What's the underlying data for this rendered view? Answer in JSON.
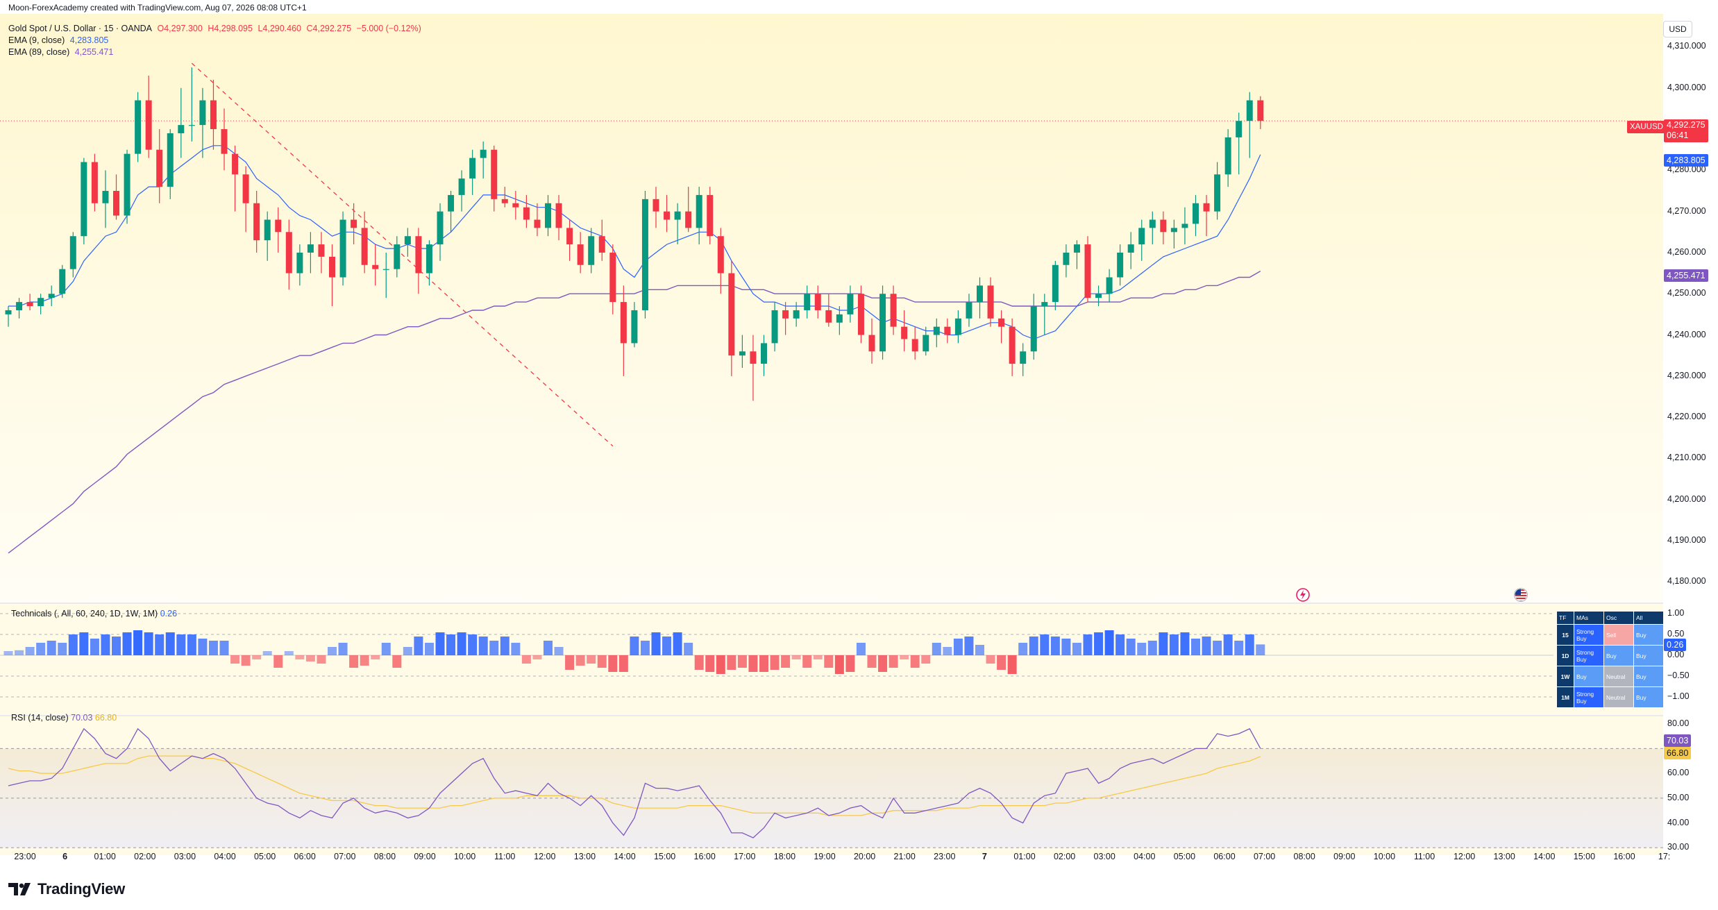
{
  "caption": "Moon-ForexAcademy created with TradingView.com, Aug 07, 2026 08:08 UTC+1",
  "legend": {
    "symbol": "Gold Spot / U.S. Dollar · 15 · OANDA",
    "o": "O4,297.300",
    "h": "H4,298.095",
    "l": "L4,290.460",
    "c": "C4,292.275",
    "chg": "−5.000 (−0.12%)",
    "ema9_label": "EMA (9, close)",
    "ema9_value": "4,283.805",
    "ema89_label": "EMA (89, close)",
    "ema89_value": "4,255.471"
  },
  "currency": "USD",
  "price_axis": [
    "4,310.000",
    "4,300.000",
    "4,290.000",
    "4,280.000",
    "4,270.000",
    "4,260.000",
    "4,250.000",
    "4,240.000",
    "4,230.000",
    "4,220.000",
    "4,210.000",
    "4,200.000",
    "4,190.000",
    "4,180.000"
  ],
  "price_tags": {
    "symbol": "XAUUSD",
    "last": "4,292.275",
    "countdown": "06:41",
    "ema9": "4,283.805",
    "ema89": "4,255.471"
  },
  "technicals": {
    "label": "Technicals (, All, 60, 240, 1D, 1W, 1M)",
    "value": "0.26",
    "axis": [
      "1.00",
      "0.50",
      "0.00",
      "−0.50",
      "−1.00"
    ],
    "table": {
      "headers": [
        "TF",
        "MAs",
        "Osc",
        "All"
      ],
      "rows": [
        {
          "tf": "15",
          "mas": "Strong Buy",
          "osc": "Sell",
          "all": "Buy"
        },
        {
          "tf": "1D",
          "mas": "Strong Buy",
          "osc": "Buy",
          "all": "Buy"
        },
        {
          "tf": "1W",
          "mas": "Buy",
          "osc": "Neutral",
          "all": "Buy"
        },
        {
          "tf": "1M",
          "mas": "Strong Buy",
          "osc": "Neutral",
          "all": "Buy"
        }
      ]
    }
  },
  "rsi": {
    "label": "RSI (14, close)",
    "value": "70.03",
    "ma_value": "66.80",
    "axis": [
      "80.00",
      "70.00",
      "60.00",
      "50.00",
      "40.00",
      "30.00"
    ]
  },
  "time_axis": [
    "23:00",
    "6",
    "01:00",
    "02:00",
    "03:00",
    "04:00",
    "05:00",
    "06:00",
    "07:00",
    "08:00",
    "09:00",
    "10:00",
    "11:00",
    "12:00",
    "13:00",
    "14:00",
    "15:00",
    "16:00",
    "17:00",
    "18:00",
    "19:00",
    "20:00",
    "21:00",
    "23:00",
    "7",
    "01:00",
    "02:00",
    "03:00",
    "04:00",
    "05:00",
    "06:00",
    "07:00",
    "08:00",
    "09:00",
    "10:00",
    "11:00",
    "12:00",
    "13:00",
    "14:00",
    "15:00",
    "16:00",
    "17:"
  ],
  "brand": "TradingView",
  "colors": {
    "up": "#089981",
    "down": "#f23645",
    "ema9": "#2962ff",
    "ema89": "#7e57c2",
    "rsi": "#7e57c2",
    "rsi_ma": "#f7c948"
  },
  "chart_data": {
    "type": "candlestick",
    "symbol": "XAUUSD",
    "timeframe": "15",
    "ylim": [
      4175,
      4318
    ],
    "candles": [
      [
        4245,
        4247,
        4242,
        4246
      ],
      [
        4246,
        4249,
        4244,
        4248
      ],
      [
        4248,
        4250,
        4246,
        4247
      ],
      [
        4247,
        4250,
        4245,
        4249
      ],
      [
        4249,
        4252,
        4247,
        4250
      ],
      [
        4250,
        4257,
        4249,
        4256
      ],
      [
        4256,
        4265,
        4254,
        4264
      ],
      [
        4264,
        4283,
        4262,
        4282
      ],
      [
        4282,
        4284,
        4270,
        4272
      ],
      [
        4272,
        4280,
        4266,
        4275
      ],
      [
        4275,
        4279,
        4268,
        4269
      ],
      [
        4269,
        4285,
        4267,
        4284
      ],
      [
        4284,
        4299,
        4282,
        4297
      ],
      [
        4297,
        4303,
        4283,
        4285
      ],
      [
        4285,
        4290,
        4272,
        4276
      ],
      [
        4276,
        4290,
        4273,
        4289
      ],
      [
        4289,
        4300,
        4283,
        4291
      ],
      [
        4291,
        4305,
        4287,
        4291
      ],
      [
        4291,
        4300,
        4283,
        4297
      ],
      [
        4297,
        4302,
        4285,
        4290
      ],
      [
        4290,
        4295,
        4280,
        4284
      ],
      [
        4284,
        4286,
        4270,
        4279
      ],
      [
        4279,
        4281,
        4265,
        4272
      ],
      [
        4272,
        4275,
        4260,
        4263
      ],
      [
        4263,
        4270,
        4258,
        4268
      ],
      [
        4268,
        4271,
        4260,
        4265
      ],
      [
        4265,
        4268,
        4251,
        4255
      ],
      [
        4255,
        4262,
        4252,
        4260
      ],
      [
        4260,
        4265,
        4255,
        4262
      ],
      [
        4262,
        4265,
        4255,
        4259
      ],
      [
        4259,
        4262,
        4247,
        4254
      ],
      [
        4254,
        4270,
        4252,
        4268
      ],
      [
        4268,
        4272,
        4262,
        4266
      ],
      [
        4266,
        4270,
        4255,
        4257
      ],
      [
        4257,
        4262,
        4252,
        4256
      ],
      [
        4256,
        4260,
        4249,
        4256
      ],
      [
        4256,
        4264,
        4254,
        4262
      ],
      [
        4262,
        4266,
        4259,
        4264
      ],
      [
        4264,
        4266,
        4250,
        4255
      ],
      [
        4255,
        4263,
        4252,
        4262
      ],
      [
        4262,
        4272,
        4258,
        4270
      ],
      [
        4270,
        4275,
        4265,
        4274
      ],
      [
        4274,
        4280,
        4270,
        4278
      ],
      [
        4278,
        4285,
        4274,
        4283
      ],
      [
        4283,
        4287,
        4278,
        4285
      ],
      [
        4285,
        4286,
        4270,
        4273
      ],
      [
        4273,
        4276,
        4271,
        4272
      ],
      [
        4272,
        4275,
        4268,
        4271
      ],
      [
        4271,
        4274,
        4266,
        4268
      ],
      [
        4268,
        4272,
        4264,
        4266
      ],
      [
        4266,
        4274,
        4264,
        4272
      ],
      [
        4272,
        4274,
        4263,
        4266
      ],
      [
        4266,
        4268,
        4258,
        4262
      ],
      [
        4262,
        4265,
        4255,
        4257
      ],
      [
        4257,
        4266,
        4255,
        4264
      ],
      [
        4264,
        4268,
        4258,
        4260
      ],
      [
        4260,
        4262,
        4245,
        4248
      ],
      [
        4248,
        4252,
        4230,
        4238
      ],
      [
        4238,
        4248,
        4237,
        4246
      ],
      [
        4246,
        4275,
        4244,
        4273
      ],
      [
        4273,
        4276,
        4266,
        4270
      ],
      [
        4270,
        4274,
        4265,
        4268
      ],
      [
        4268,
        4272,
        4262,
        4270
      ],
      [
        4270,
        4276,
        4265,
        4266
      ],
      [
        4266,
        4276,
        4262,
        4274
      ],
      [
        4274,
        4276,
        4262,
        4264
      ],
      [
        4264,
        4266,
        4250,
        4255
      ],
      [
        4255,
        4258,
        4230,
        4235
      ],
      [
        4235,
        4240,
        4232,
        4236
      ],
      [
        4236,
        4240,
        4224,
        4233
      ],
      [
        4233,
        4240,
        4230,
        4238
      ],
      [
        4238,
        4248,
        4236,
        4246
      ],
      [
        4246,
        4248,
        4240,
        4244
      ],
      [
        4244,
        4248,
        4242,
        4246
      ],
      [
        4246,
        4252,
        4244,
        4250
      ],
      [
        4250,
        4252,
        4244,
        4246
      ],
      [
        4246,
        4250,
        4242,
        4243
      ],
      [
        4243,
        4247,
        4240,
        4245
      ],
      [
        4245,
        4252,
        4243,
        4250
      ],
      [
        4250,
        4252,
        4238,
        4240
      ],
      [
        4240,
        4244,
        4233,
        4236
      ],
      [
        4236,
        4252,
        4234,
        4250
      ],
      [
        4250,
        4252,
        4240,
        4242
      ],
      [
        4242,
        4246,
        4236,
        4239
      ],
      [
        4239,
        4242,
        4234,
        4236
      ],
      [
        4236,
        4242,
        4235,
        4240
      ],
      [
        4240,
        4244,
        4237,
        4242
      ],
      [
        4242,
        4244,
        4238,
        4240
      ],
      [
        4240,
        4246,
        4238,
        4244
      ],
      [
        4244,
        4250,
        4242,
        4248
      ],
      [
        4248,
        4254,
        4244,
        4252
      ],
      [
        4252,
        4254,
        4242,
        4244
      ],
      [
        4244,
        4246,
        4238,
        4242
      ],
      [
        4242,
        4244,
        4230,
        4233
      ],
      [
        4233,
        4238,
        4230,
        4236
      ],
      [
        4236,
        4250,
        4234,
        4247
      ],
      [
        4247,
        4250,
        4240,
        4248
      ],
      [
        4248,
        4258,
        4246,
        4257
      ],
      [
        4257,
        4262,
        4254,
        4260
      ],
      [
        4260,
        4263,
        4256,
        4262
      ],
      [
        4262,
        4264,
        4248,
        4249
      ],
      [
        4249,
        4252,
        4247,
        4250
      ],
      [
        4250,
        4256,
        4248,
        4254
      ],
      [
        4254,
        4262,
        4252,
        4260
      ],
      [
        4260,
        4265,
        4256,
        4262
      ],
      [
        4262,
        4268,
        4258,
        4266
      ],
      [
        4266,
        4270,
        4262,
        4268
      ],
      [
        4268,
        4270,
        4262,
        4265
      ],
      [
        4265,
        4268,
        4261,
        4266
      ],
      [
        4266,
        4271,
        4262,
        4267
      ],
      [
        4267,
        4274,
        4264,
        4272
      ],
      [
        4272,
        4274,
        4264,
        4270
      ],
      [
        4270,
        4282,
        4268,
        4279
      ],
      [
        4279,
        4290,
        4276,
        4288
      ],
      [
        4288,
        4294,
        4279,
        4292
      ],
      [
        4292,
        4299,
        4283,
        4297
      ],
      [
        4297,
        4298,
        4290,
        4292
      ]
    ],
    "ema9": [
      4247,
      4247,
      4248,
      4248,
      4249,
      4250,
      4253,
      4258,
      4261,
      4264,
      4265,
      4269,
      4274,
      4276,
      4276,
      4279,
      4281,
      4283,
      4285,
      4286,
      4286,
      4284,
      4282,
      4278,
      4276,
      4274,
      4271,
      4269,
      4268,
      4266,
      4264,
      4265,
      4265,
      4264,
      4262,
      4261,
      4261,
      4262,
      4261,
      4261,
      4263,
      4265,
      4268,
      4271,
      4274,
      4274,
      4274,
      4273,
      4272,
      4271,
      4271,
      4270,
      4268,
      4266,
      4265,
      4264,
      4261,
      4256,
      4254,
      4258,
      4260,
      4262,
      4263,
      4264,
      4265,
      4265,
      4263,
      4258,
      4254,
      4250,
      4248,
      4248,
      4247,
      4247,
      4247,
      4247,
      4247,
      4246,
      4246,
      4247,
      4245,
      4243,
      4244,
      4243,
      4242,
      4241,
      4241,
      4240,
      4240,
      4241,
      4242,
      4243,
      4243,
      4242,
      4240,
      4239,
      4240,
      4241,
      4244,
      4247,
      4250,
      4250,
      4250,
      4251,
      4253,
      4255,
      4257,
      4259,
      4260,
      4261,
      4262,
      4263,
      4264,
      4268,
      4273,
      4278,
      4283.8
    ],
    "ema89": [
      4187,
      4189,
      4191,
      4193,
      4195,
      4197,
      4199,
      4202,
      4204,
      4206,
      4208,
      4211,
      4213,
      4215,
      4217,
      4219,
      4221,
      4223,
      4225,
      4226,
      4228,
      4229,
      4230,
      4231,
      4232,
      4233,
      4234,
      4235,
      4235,
      4236,
      4237,
      4238,
      4238,
      4239,
      4240,
      4240,
      4241,
      4242,
      4242,
      4243,
      4244,
      4244,
      4245,
      4246,
      4246,
      4247,
      4247,
      4248,
      4248,
      4249,
      4249,
      4249,
      4250,
      4250,
      4250,
      4250,
      4250,
      4250,
      4250,
      4251,
      4251,
      4251,
      4252,
      4252,
      4252,
      4252,
      4252,
      4252,
      4251,
      4251,
      4251,
      4250,
      4250,
      4250,
      4250,
      4250,
      4250,
      4250,
      4250,
      4250,
      4249,
      4249,
      4249,
      4249,
      4248,
      4248,
      4248,
      4248,
      4248,
      4248,
      4248,
      4248,
      4248,
      4247,
      4247,
      4247,
      4247,
      4247,
      4247,
      4247,
      4248,
      4248,
      4248,
      4248,
      4249,
      4249,
      4249,
      4250,
      4250,
      4251,
      4251,
      4252,
      4252,
      4253,
      4254,
      4254,
      4255.5
    ],
    "trendline": {
      "from": [
        17,
        4306
      ],
      "to": [
        56,
        4213
      ],
      "style": "dashed",
      "color": "#f23645"
    },
    "technicals": [
      0.1,
      0.12,
      0.2,
      0.3,
      0.35,
      0.3,
      0.5,
      0.55,
      0.4,
      0.5,
      0.45,
      0.55,
      0.6,
      0.55,
      0.5,
      0.55,
      0.5,
      0.5,
      0.4,
      0.35,
      0.35,
      -0.2,
      -0.25,
      -0.1,
      0.1,
      -0.3,
      0.1,
      -0.1,
      -0.15,
      -0.2,
      0.2,
      0.3,
      -0.3,
      -0.25,
      -0.1,
      0.3,
      -0.3,
      0.2,
      0.45,
      0.3,
      0.55,
      0.5,
      0.55,
      0.5,
      0.45,
      0.35,
      0.45,
      0.3,
      -0.2,
      -0.1,
      0.35,
      0.2,
      -0.35,
      -0.25,
      -0.2,
      -0.3,
      -0.4,
      -0.4,
      0.45,
      0.35,
      0.55,
      0.45,
      0.55,
      0.3,
      -0.35,
      -0.4,
      -0.45,
      -0.35,
      -0.3,
      -0.4,
      -0.4,
      -0.35,
      -0.3,
      -0.1,
      -0.3,
      -0.1,
      -0.3,
      -0.45,
      -0.4,
      0.3,
      -0.3,
      -0.4,
      -0.3,
      -0.1,
      -0.3,
      -0.2,
      0.3,
      0.2,
      0.4,
      0.45,
      0.25,
      -0.2,
      -0.35,
      -0.45,
      0.3,
      0.45,
      0.5,
      0.45,
      0.4,
      0.3,
      0.5,
      0.55,
      0.6,
      0.5,
      0.4,
      0.3,
      0.35,
      0.55,
      0.5,
      0.55,
      0.4,
      0.45,
      0.35,
      0.5,
      0.35,
      0.5,
      0.26
    ],
    "rsi": [
      55,
      56,
      57,
      57,
      58,
      62,
      70,
      78,
      74,
      68,
      66,
      70,
      78,
      74,
      66,
      61,
      64,
      67,
      66,
      68,
      66,
      62,
      56,
      50,
      48,
      47,
      44,
      42,
      45,
      43,
      42,
      48,
      50,
      46,
      44,
      45,
      44,
      42,
      43,
      46,
      52,
      56,
      60,
      64,
      66,
      58,
      52,
      53,
      52,
      51,
      56,
      52,
      50,
      47,
      51,
      47,
      40,
      35,
      42,
      56,
      54,
      54,
      53,
      54,
      55,
      49,
      44,
      36,
      36,
      34,
      38,
      44,
      42,
      43,
      44,
      46,
      43,
      44,
      46,
      47,
      44,
      42,
      50,
      44,
      44,
      45,
      46,
      47,
      48,
      52,
      54,
      52,
      48,
      42,
      40,
      48,
      51,
      52,
      60,
      61,
      62,
      56,
      58,
      62,
      64,
      65,
      66,
      64,
      66,
      68,
      70,
      70,
      76,
      75,
      76,
      78,
      70.03
    ],
    "rsi_ma": [
      62,
      61,
      61,
      60,
      60,
      60,
      61,
      62,
      63,
      64,
      64,
      64,
      66,
      67,
      67,
      67,
      67,
      67,
      66,
      66,
      65,
      64,
      62,
      60,
      58,
      56,
      54,
      52,
      51,
      50,
      49,
      49,
      49,
      48,
      47,
      47,
      46,
      46,
      46,
      46,
      46,
      47,
      47,
      48,
      49,
      50,
      50,
      50,
      51,
      51,
      51,
      51,
      51,
      50,
      50,
      50,
      48,
      47,
      46,
      46,
      46,
      46,
      46,
      47,
      47,
      47,
      47,
      46,
      45,
      44,
      44,
      44,
      44,
      44,
      44,
      44,
      43,
      43,
      43,
      43,
      44,
      44,
      45,
      45,
      45,
      45,
      45,
      46,
      46,
      46,
      47,
      47,
      47,
      47,
      47,
      47,
      47,
      48,
      48,
      49,
      50,
      50,
      51,
      52,
      53,
      54,
      55,
      56,
      57,
      58,
      59,
      60,
      62,
      63,
      64,
      65,
      66.8
    ]
  }
}
